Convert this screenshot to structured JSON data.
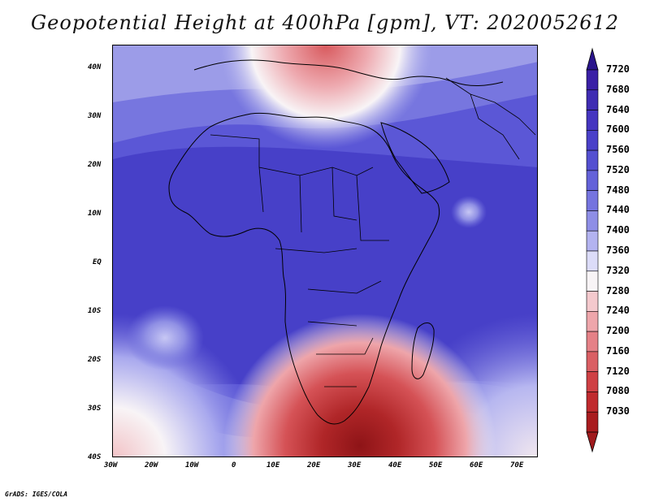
{
  "title": "Geopotential Height at 400hPa [gpm], VT: 2020052612",
  "credit": "GrADS: IGES/COLA",
  "map": {
    "lat_labels": [
      "40N",
      "30N",
      "20N",
      "10N",
      "EQ",
      "10S",
      "20S",
      "30S",
      "40S"
    ],
    "lon_labels": [
      "30W",
      "20W",
      "10W",
      "0",
      "10E",
      "20E",
      "30E",
      "40E",
      "50E",
      "60E",
      "70E"
    ],
    "lat_range": [
      -40,
      45
    ],
    "lon_range": [
      -30,
      75
    ]
  },
  "colorbar": {
    "levels": [
      "7720",
      "7680",
      "7640",
      "7600",
      "7560",
      "7520",
      "7480",
      "7440",
      "7400",
      "7360",
      "7320",
      "7280",
      "7240",
      "7200",
      "7160",
      "7120",
      "7080",
      "7030"
    ],
    "colors": [
      "#3a1fa6",
      "#3f2cb3",
      "#4535c0",
      "#4a40c9",
      "#5450d1",
      "#6462d9",
      "#7574df",
      "#8e8ee6",
      "#b3b3f0",
      "#dcdcf8",
      "#f8f4f6",
      "#f4c9cd",
      "#eea6ab",
      "#e58187",
      "#da5f64",
      "#cf4044",
      "#c02a2e",
      "#a91c1f"
    ],
    "top_arrow_color": "#2a158c",
    "bottom_arrow_color": "#a01a1d"
  },
  "palette": {
    "deep_blue": "#4a40c9",
    "light_blue": "#7a78e0",
    "pale_blue": "#b7b7f0",
    "white": "#f8f5f7",
    "pink": "#f0b3b8",
    "red": "#d4484c",
    "dark_red": "#a01a1d",
    "coast": "#000000"
  }
}
